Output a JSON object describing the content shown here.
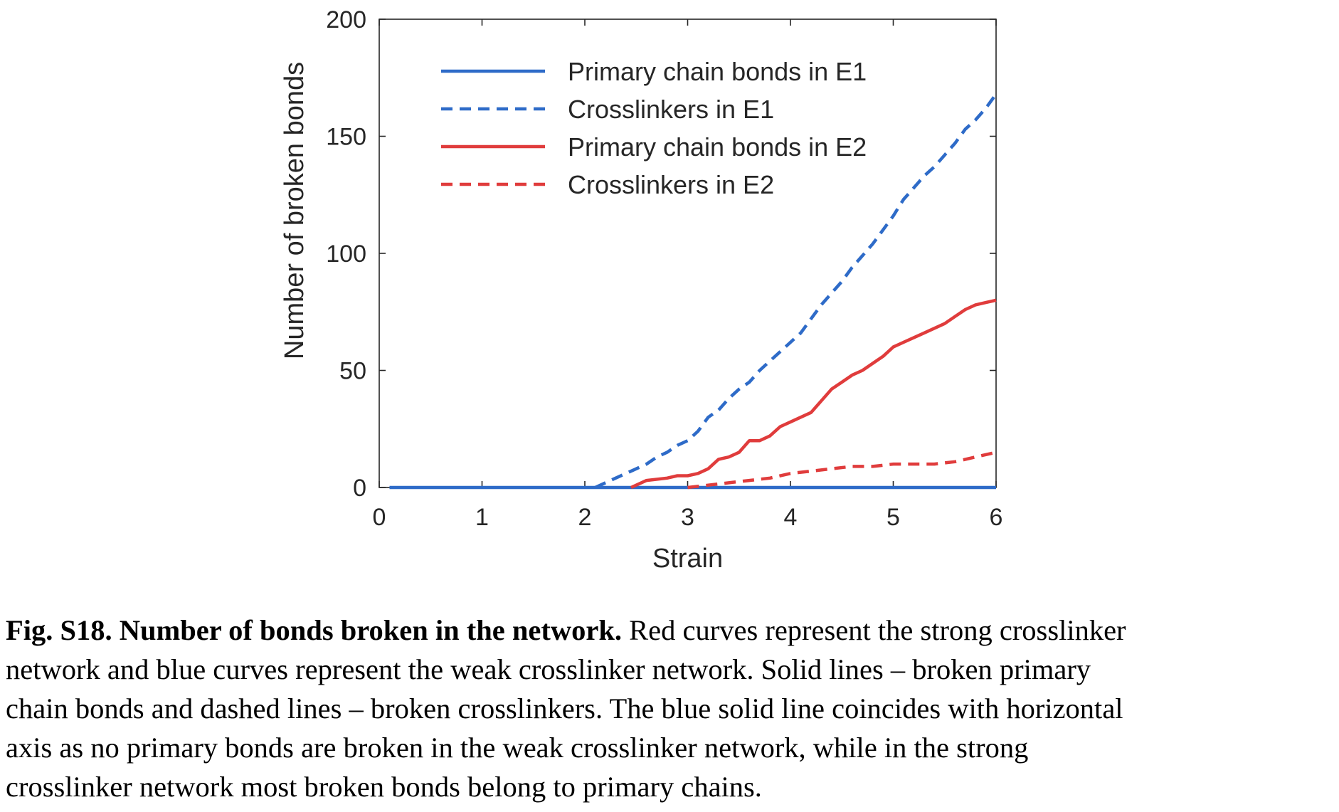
{
  "chart_data": {
    "type": "line",
    "title": "",
    "xlabel": "Strain",
    "ylabel": "Number of broken bonds",
    "xlim": [
      0,
      6
    ],
    "ylim": [
      0,
      200
    ],
    "xticks": [
      0,
      1,
      2,
      3,
      4,
      5,
      6
    ],
    "yticks": [
      0,
      50,
      100,
      150,
      200
    ],
    "grid": false,
    "legend_position": "top-right",
    "series": [
      {
        "name": "Primary chain bonds in E1",
        "color": "#2e6bc8",
        "style": "solid",
        "x": [
          0.1,
          6.0
        ],
        "y": [
          0,
          0
        ]
      },
      {
        "name": "Crosslinkers in E1",
        "color": "#2e6bc8",
        "style": "dashed",
        "x": [
          2.1,
          2.2,
          2.3,
          2.4,
          2.5,
          2.6,
          2.7,
          2.8,
          2.9,
          3.0,
          3.1,
          3.2,
          3.3,
          3.4,
          3.5,
          3.6,
          3.7,
          3.8,
          3.9,
          4.0,
          4.1,
          4.2,
          4.3,
          4.4,
          4.5,
          4.6,
          4.7,
          4.8,
          4.9,
          5.0,
          5.1,
          5.2,
          5.3,
          5.4,
          5.5,
          5.6,
          5.7,
          5.8,
          5.9,
          6.0
        ],
        "y": [
          0,
          2,
          4,
          6,
          8,
          10,
          13,
          15,
          18,
          20,
          24,
          30,
          33,
          38,
          42,
          45,
          50,
          54,
          58,
          62,
          66,
          72,
          78,
          83,
          88,
          94,
          99,
          104,
          110,
          116,
          123,
          128,
          133,
          137,
          142,
          147,
          153,
          157,
          162,
          168
        ]
      },
      {
        "name": "Primary chain bonds in E2",
        "color": "#e03c3c",
        "style": "solid",
        "x": [
          2.45,
          2.6,
          2.8,
          2.9,
          3.0,
          3.1,
          3.2,
          3.3,
          3.4,
          3.5,
          3.6,
          3.7,
          3.8,
          3.9,
          4.0,
          4.1,
          4.2,
          4.3,
          4.4,
          4.5,
          4.6,
          4.7,
          4.8,
          4.9,
          5.0,
          5.1,
          5.2,
          5.3,
          5.4,
          5.5,
          5.6,
          5.7,
          5.8,
          5.9,
          6.0
        ],
        "y": [
          0,
          3,
          4,
          5,
          5,
          6,
          8,
          12,
          13,
          15,
          20,
          20,
          22,
          26,
          28,
          30,
          32,
          37,
          42,
          45,
          48,
          50,
          53,
          56,
          60,
          62,
          64,
          66,
          68,
          70,
          73,
          76,
          78,
          79,
          80
        ]
      },
      {
        "name": "Crosslinkers in E2",
        "color": "#e03c3c",
        "style": "dashed",
        "x": [
          3.0,
          3.2,
          3.4,
          3.6,
          3.8,
          4.0,
          4.2,
          4.4,
          4.6,
          4.8,
          5.0,
          5.2,
          5.4,
          5.6,
          5.8,
          6.0
        ],
        "y": [
          0,
          1,
          2,
          3,
          4,
          6,
          7,
          8,
          9,
          9,
          10,
          10,
          10,
          11,
          13,
          15
        ]
      }
    ]
  },
  "caption": {
    "bold_lead": "Fig. S18. Number of bonds broken in the network.",
    "line1_rest": " Red curves represent the strong crosslinker",
    "line2": "network and blue curves represent the weak crosslinker network. Solid lines – broken primary",
    "line3": "chain bonds and dashed lines – broken crosslinkers. The blue solid line coincides with horizontal",
    "line4": "axis as no primary bonds are broken in the weak crosslinker network, while in the strong",
    "line5": "crosslinker network most broken bonds belong to primary chains."
  }
}
